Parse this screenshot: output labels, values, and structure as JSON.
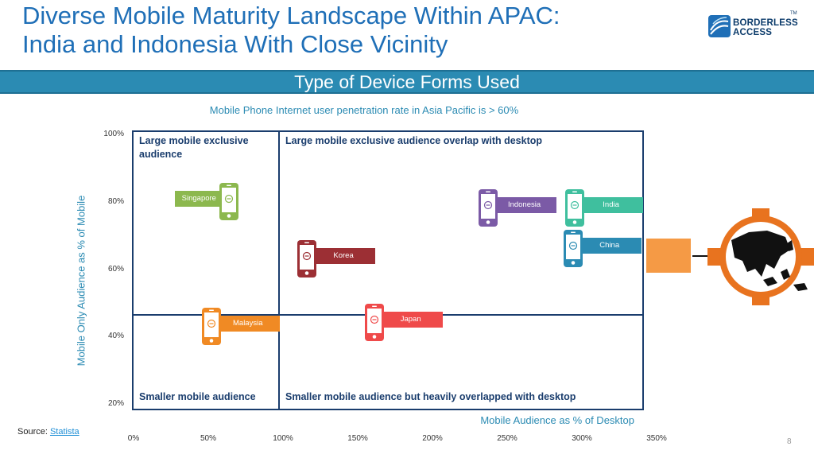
{
  "header": {
    "title_line1": "Diverse Mobile Maturity Landscape Within APAC:",
    "title_line2": "India and Indonesia With Close Vicinity",
    "logo_line1": "BORDERLESS",
    "logo_line2": "ACCESS",
    "logo_tm": "TM"
  },
  "banner": {
    "text": "Type of Device Forms Used"
  },
  "subtitle": "Mobile Phone Internet user penetration rate in Asia Pacific is > 60%",
  "quadrants": {
    "top_left": [
      "Large mobile exclusive",
      "audience"
    ],
    "top_right": "Large mobile exclusive audience overlap with desktop",
    "bottom_left": "Smaller mobile audience",
    "bottom_right": "Smaller mobile audience but heavily overlapped with desktop"
  },
  "source": {
    "label": "Source: ",
    "link_text": "Statista"
  },
  "page_number": "8",
  "chart_data": {
    "type": "scatter",
    "title": "Type of Device Forms Used",
    "xlabel": "Mobile Audience as % of Desktop",
    "ylabel": "Mobile Only Audience as % of Mobile",
    "xlim": [
      0,
      350
    ],
    "ylim": [
      20,
      100
    ],
    "x_ticks": [
      "0%",
      "50%",
      "100%",
      "150%",
      "200%",
      "250%",
      "300%",
      "350%"
    ],
    "y_ticks": [
      "20%",
      "40%",
      "60%",
      "80%",
      "100%"
    ],
    "x_tick_values": [
      0,
      50,
      100,
      150,
      200,
      250,
      300,
      350
    ],
    "y_tick_values": [
      20,
      40,
      60,
      80,
      100
    ],
    "grid": false,
    "quadrant_split": {
      "x": 100,
      "y": 46
    },
    "points": [
      {
        "name": "Singapore",
        "x": 64,
        "y": 80,
        "color": "#8cb84e"
      },
      {
        "name": "Indonesia",
        "x": 237,
        "y": 78,
        "color": "#7b5aa6"
      },
      {
        "name": "India",
        "x": 295,
        "y": 78,
        "color": "#3fbf9e"
      },
      {
        "name": "China",
        "x": 294,
        "y": 66,
        "color": "#2b8bb3"
      },
      {
        "name": "Korea",
        "x": 116,
        "y": 63,
        "color": "#9c2f34"
      },
      {
        "name": "Malaysia",
        "x": 52,
        "y": 43,
        "color": "#f08a24"
      },
      {
        "name": "Japan",
        "x": 161,
        "y": 44,
        "color": "#ef4a4a"
      }
    ]
  }
}
